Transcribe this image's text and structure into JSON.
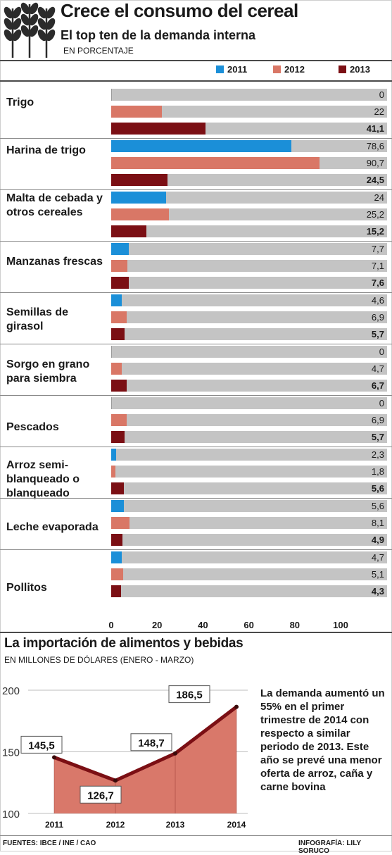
{
  "header": {
    "title": "Crece el consumo del cereal",
    "subtitle": "El top ten de la demanda interna",
    "unit": "EN PORCENTAJE"
  },
  "colors": {
    "y2011": "#1b8fd8",
    "y2012": "#d97766",
    "y2013": "#7b0f14",
    "track": "#c4c4c4",
    "area": "#d9786a",
    "line": "#7b0f14"
  },
  "chart_data": [
    {
      "type": "bar",
      "orientation": "horizontal",
      "legend": [
        "2011",
        "2012",
        "2013"
      ],
      "xlim": [
        0,
        120
      ],
      "xticks": [
        "0",
        "20",
        "40",
        "60",
        "80",
        "100"
      ],
      "categories": [
        {
          "label": "Trigo",
          "values": [
            0,
            22,
            41.1
          ],
          "labels": [
            "0",
            "22",
            "41,1"
          ]
        },
        {
          "label": "Harina de trigo",
          "values": [
            78.6,
            90.7,
            24.5
          ],
          "labels": [
            "78,6",
            "90,7",
            "24,5"
          ]
        },
        {
          "label": "Malta de cebada y otros cereales",
          "values": [
            24,
            25.2,
            15.2
          ],
          "labels": [
            "24",
            "25,2",
            "15,2"
          ]
        },
        {
          "label": "Manzanas frescas",
          "values": [
            7.7,
            7.1,
            7.6
          ],
          "labels": [
            "7,7",
            "7,1",
            "7,6"
          ]
        },
        {
          "label": "Semillas de girasol",
          "values": [
            4.6,
            6.9,
            5.7
          ],
          "labels": [
            "4,6",
            "6,9",
            "5,7"
          ]
        },
        {
          "label": "Sorgo en grano para siembra",
          "values": [
            0,
            4.7,
            6.7
          ],
          "labels": [
            "0",
            "4,7",
            "6,7"
          ]
        },
        {
          "label": "Pescados",
          "values": [
            0,
            6.9,
            5.7
          ],
          "labels": [
            "0",
            "6,9",
            "5,7"
          ]
        },
        {
          "label": "Arroz semi-blanqueado o blanqueado",
          "values": [
            2.3,
            1.8,
            5.6
          ],
          "labels": [
            "2,3",
            "1,8",
            "5,6"
          ]
        },
        {
          "label": "Leche evaporada",
          "values": [
            5.6,
            8.1,
            4.9
          ],
          "labels": [
            "5,6",
            "8,1",
            "4,9"
          ]
        },
        {
          "label": "Pollitos",
          "values": [
            4.7,
            5.1,
            4.3
          ],
          "labels": [
            "4,7",
            "5,1",
            "4,3"
          ]
        }
      ]
    },
    {
      "type": "area",
      "title": "La importación de alimentos y bebidas",
      "unit": "EN MILLONES DE DÓLARES (ENERO - MARZO)",
      "x": [
        "2011",
        "2012",
        "2013",
        "2014"
      ],
      "values": [
        145.5,
        126.7,
        148.7,
        186.5
      ],
      "labels": [
        "145,5",
        "126,7",
        "148,7",
        "186,5"
      ],
      "ylim": [
        100,
        200
      ],
      "yticks": [
        "100",
        "150",
        "200"
      ],
      "grid": true
    }
  ],
  "note": "La demanda aumentó un 55% en el primer trimestre de 2014 con respecto a similar periodo de 2013. Este año se prevé una menor oferta de arroz, caña y carne bovina",
  "footer": {
    "sources": "FUENTES: IBCE / INE / CAO",
    "credit": "INFOGRAFÍA: LILY SORUCO"
  }
}
